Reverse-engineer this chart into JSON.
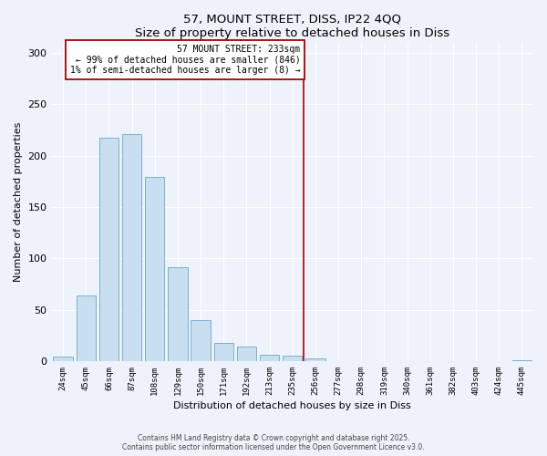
{
  "title": "57, MOUNT STREET, DISS, IP22 4QQ",
  "subtitle": "Size of property relative to detached houses in Diss",
  "xlabel": "Distribution of detached houses by size in Diss",
  "ylabel": "Number of detached properties",
  "bar_color": "#c8dff0",
  "bar_edge_color": "#7ab0d4",
  "background_color": "#eef2fa",
  "grid_color": "#ffffff",
  "categories": [
    "24sqm",
    "45sqm",
    "66sqm",
    "87sqm",
    "108sqm",
    "129sqm",
    "150sqm",
    "171sqm",
    "192sqm",
    "213sqm",
    "235sqm",
    "256sqm",
    "277sqm",
    "298sqm",
    "319sqm",
    "340sqm",
    "361sqm",
    "382sqm",
    "403sqm",
    "424sqm",
    "445sqm"
  ],
  "values": [
    4,
    64,
    218,
    221,
    179,
    91,
    40,
    18,
    14,
    6,
    5,
    3,
    0,
    0,
    0,
    0,
    0,
    0,
    0,
    0,
    1
  ],
  "vline_color": "#aa0000",
  "annotation_title": "57 MOUNT STREET: 233sqm",
  "annotation_line1": "← 99% of detached houses are smaller (846)",
  "annotation_line2": "1% of semi-detached houses are larger (8) →",
  "ylim": [
    0,
    310
  ],
  "yticks": [
    0,
    50,
    100,
    150,
    200,
    250,
    300
  ],
  "footer_line1": "Contains HM Land Registry data © Crown copyright and database right 2025.",
  "footer_line2": "Contains public sector information licensed under the Open Government Licence v3.0."
}
